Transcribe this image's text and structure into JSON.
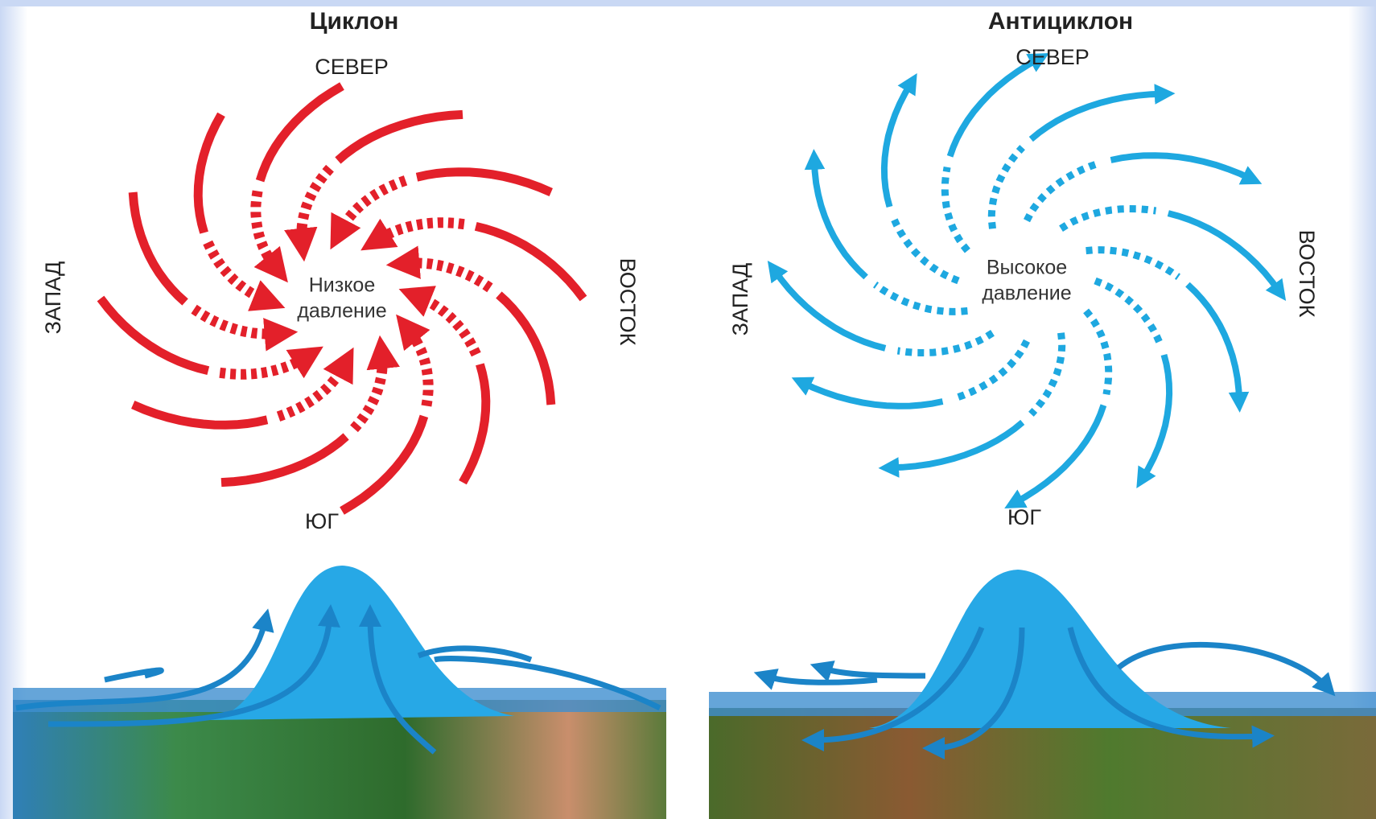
{
  "panels": [
    {
      "title": "Циклон",
      "north": "СЕВЕР",
      "west": "ЗАПАД",
      "east": "ВОСТОК",
      "south": "ЮГ",
      "center": [
        "Низкое",
        "давление"
      ]
    },
    {
      "title": "Антициклон",
      "north": "СЕВЕР",
      "west": "ЗАПАД",
      "east": "ВОСТОК",
      "south": "ЮГ",
      "center": [
        "Высокое",
        "давление"
      ]
    }
  ]
}
